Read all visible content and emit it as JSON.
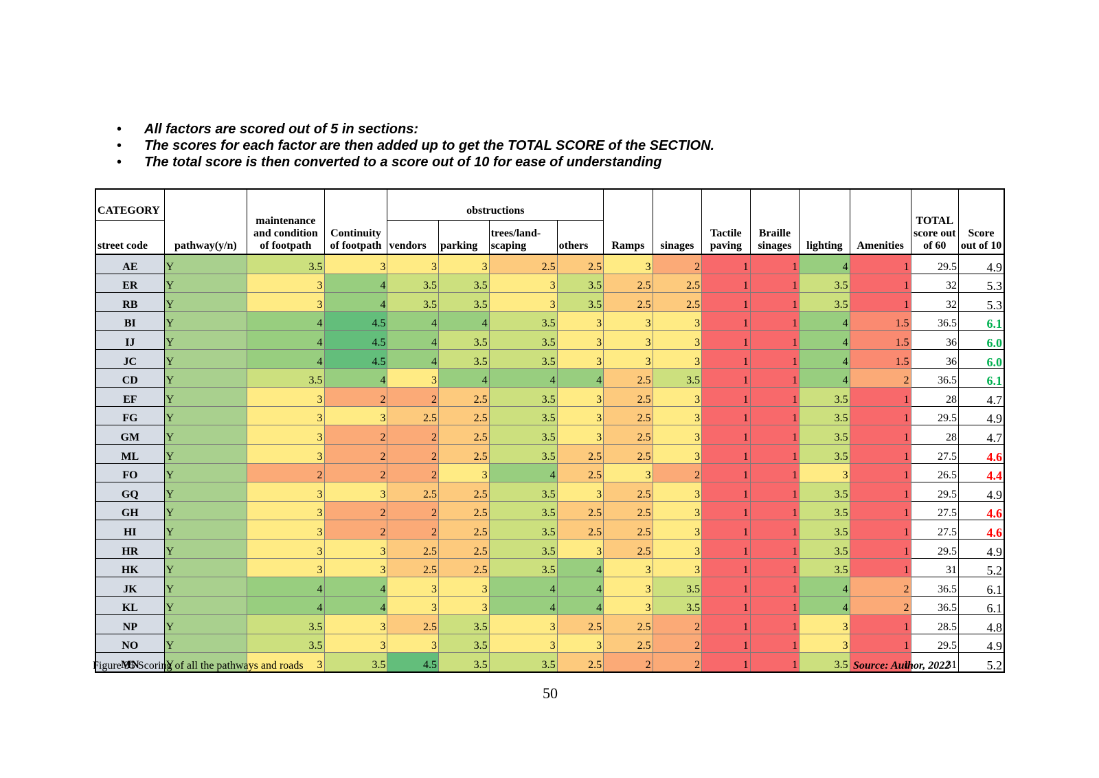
{
  "bullets": [
    "All factors are scored out of 5 in sections:",
    "The scores for each factor are then added up to get the TOTAL SCORE of the SECTION.",
    "The total score is then converted to a score out of 10 for ease of understanding"
  ],
  "bullet_glyph": "•",
  "table": {
    "header": {
      "category": "CATEGORY",
      "street_code": "street code",
      "pathway": "pathway(y/n)",
      "maintenance": "maintenance and condition of footpath",
      "continuity": "Continuity of footpath",
      "obstructions": "obstructions",
      "vendors": "vendors",
      "parking": "parking",
      "trees": "trees/land-scaping",
      "others": "others",
      "ramps": "Ramps",
      "sinages": "sinages",
      "tactile": "Tactile paving",
      "braille": "Braille sinages",
      "lighting": "lighting",
      "amenities": "Amenities",
      "total": "TOTAL score out of 60",
      "score10": "Score out of 10"
    },
    "colors": {
      "c1": "#f8696b",
      "c1_5": "#fa8a71",
      "c2": "#fbaa77",
      "c2_5": "#fdca7d",
      "c3": "#ffeb84",
      "c3_5": "#cce07e",
      "c4": "#98ce7f",
      "c4_5": "#63be7b",
      "score_high": "#00b050",
      "score_low": "#ff0000"
    },
    "rows": [
      {
        "code": "AE",
        "path": "Y",
        "vals": [
          "3.5",
          "3",
          "3",
          "3",
          "2.5",
          "2.5",
          "3",
          "2",
          "1",
          "1",
          "4",
          "1"
        ],
        "total": "29.5",
        "score": "4.9"
      },
      {
        "code": "ER",
        "path": "Y",
        "vals": [
          "3",
          "4",
          "3.5",
          "3.5",
          "3",
          "3.5",
          "2.5",
          "2.5",
          "1",
          "1",
          "3.5",
          "1"
        ],
        "total": "32",
        "score": "5.3"
      },
      {
        "code": "RB",
        "path": "Y",
        "vals": [
          "3",
          "4",
          "3.5",
          "3.5",
          "3",
          "3.5",
          "2.5",
          "2.5",
          "1",
          "1",
          "3.5",
          "1"
        ],
        "total": "32",
        "score": "5.3"
      },
      {
        "code": "BI",
        "path": "Y",
        "vals": [
          "4",
          "4.5",
          "4",
          "4",
          "3.5",
          "3",
          "3",
          "3",
          "1",
          "1",
          "4",
          "1.5"
        ],
        "total": "36.5",
        "score": "6.1"
      },
      {
        "code": "IJ",
        "path": "Y",
        "vals": [
          "4",
          "4.5",
          "4",
          "3.5",
          "3.5",
          "3",
          "3",
          "3",
          "1",
          "1",
          "4",
          "1.5"
        ],
        "total": "36",
        "score": "6.0"
      },
      {
        "code": "JC",
        "path": "Y",
        "vals": [
          "4",
          "4.5",
          "4",
          "3.5",
          "3.5",
          "3",
          "3",
          "3",
          "1",
          "1",
          "4",
          "1.5"
        ],
        "total": "36",
        "score": "6.0"
      },
      {
        "code": "CD",
        "path": "Y",
        "vals": [
          "3.5",
          "4",
          "3",
          "4",
          "4",
          "4",
          "2.5",
          "3.5",
          "1",
          "1",
          "4",
          "2"
        ],
        "total": "36.5",
        "score": "6.1"
      },
      {
        "code": "EF",
        "path": "Y",
        "vals": [
          "3",
          "2",
          "2",
          "2.5",
          "3.5",
          "3",
          "2.5",
          "3",
          "1",
          "1",
          "3.5",
          "1"
        ],
        "total": "28",
        "score": "4.7"
      },
      {
        "code": "FG",
        "path": "Y",
        "vals": [
          "3",
          "3",
          "2.5",
          "2.5",
          "3.5",
          "3",
          "2.5",
          "3",
          "1",
          "1",
          "3.5",
          "1"
        ],
        "total": "29.5",
        "score": "4.9"
      },
      {
        "code": "GM",
        "path": "Y",
        "vals": [
          "3",
          "2",
          "2",
          "2.5",
          "3.5",
          "3",
          "2.5",
          "3",
          "1",
          "1",
          "3.5",
          "1"
        ],
        "total": "28",
        "score": "4.7"
      },
      {
        "code": "ML",
        "path": "Y",
        "vals": [
          "3",
          "2",
          "2",
          "2.5",
          "3.5",
          "2.5",
          "2.5",
          "3",
          "1",
          "1",
          "3.5",
          "1"
        ],
        "total": "27.5",
        "score": "4.6"
      },
      {
        "code": "FO",
        "path": "Y",
        "vals": [
          "2",
          "2",
          "2",
          "3",
          "4",
          "2.5",
          "3",
          "2",
          "1",
          "1",
          "3",
          "1"
        ],
        "total": "26.5",
        "score": "4.4"
      },
      {
        "code": "GQ",
        "path": "Y",
        "vals": [
          "3",
          "3",
          "2.5",
          "2.5",
          "3.5",
          "3",
          "2.5",
          "3",
          "1",
          "1",
          "3.5",
          "1"
        ],
        "total": "29.5",
        "score": "4.9"
      },
      {
        "code": "GH",
        "path": "Y",
        "vals": [
          "3",
          "2",
          "2",
          "2.5",
          "3.5",
          "2.5",
          "2.5",
          "3",
          "1",
          "1",
          "3.5",
          "1"
        ],
        "total": "27.5",
        "score": "4.6"
      },
      {
        "code": "HI",
        "path": "Y",
        "vals": [
          "3",
          "2",
          "2",
          "2.5",
          "3.5",
          "2.5",
          "2.5",
          "3",
          "1",
          "1",
          "3.5",
          "1"
        ],
        "total": "27.5",
        "score": "4.6"
      },
      {
        "code": "HR",
        "path": "Y",
        "vals": [
          "3",
          "3",
          "2.5",
          "2.5",
          "3.5",
          "3",
          "2.5",
          "3",
          "1",
          "1",
          "3.5",
          "1"
        ],
        "total": "29.5",
        "score": "4.9"
      },
      {
        "code": "HK",
        "path": "Y",
        "vals": [
          "3",
          "3",
          "2.5",
          "2.5",
          "3.5",
          "4",
          "3",
          "3",
          "1",
          "1",
          "3.5",
          "1"
        ],
        "total": "31",
        "score": "5.2"
      },
      {
        "code": "JK",
        "path": "Y",
        "vals": [
          "4",
          "4",
          "3",
          "3",
          "4",
          "4",
          "3",
          "3.5",
          "1",
          "1",
          "4",
          "2"
        ],
        "total": "36.5",
        "score": "6.1"
      },
      {
        "code": "KL",
        "path": "Y",
        "vals": [
          "4",
          "4",
          "3",
          "3",
          "4",
          "4",
          "3",
          "3.5",
          "1",
          "1",
          "4",
          "2"
        ],
        "total": "36.5",
        "score": "6.1"
      },
      {
        "code": "NP",
        "path": "Y",
        "vals": [
          "3.5",
          "3",
          "2.5",
          "3.5",
          "3",
          "2.5",
          "2.5",
          "2",
          "1",
          "1",
          "3",
          "1"
        ],
        "total": "28.5",
        "score": "4.8"
      },
      {
        "code": "NO",
        "path": "Y",
        "vals": [
          "3.5",
          "3",
          "3",
          "3.5",
          "3",
          "3",
          "2.5",
          "2",
          "1",
          "1",
          "3",
          "1"
        ],
        "total": "29.5",
        "score": "4.9"
      },
      {
        "code": "MN",
        "path": "Y",
        "vals": [
          "3",
          "3.5",
          "4.5",
          "3.5",
          "3.5",
          "2.5",
          "2",
          "2",
          "1",
          "1",
          "3.5",
          "1"
        ],
        "total": "31",
        "score": "5.2"
      }
    ],
    "highlight_high": [
      "BI",
      "IJ",
      "JC",
      "CD"
    ],
    "highlight_low": [
      "ML",
      "FO",
      "GH",
      "HI"
    ]
  },
  "caption": "Figure 35 Scoring of  all the pathways and roads",
  "source": "Source: Author, 2022",
  "page_number": "50"
}
